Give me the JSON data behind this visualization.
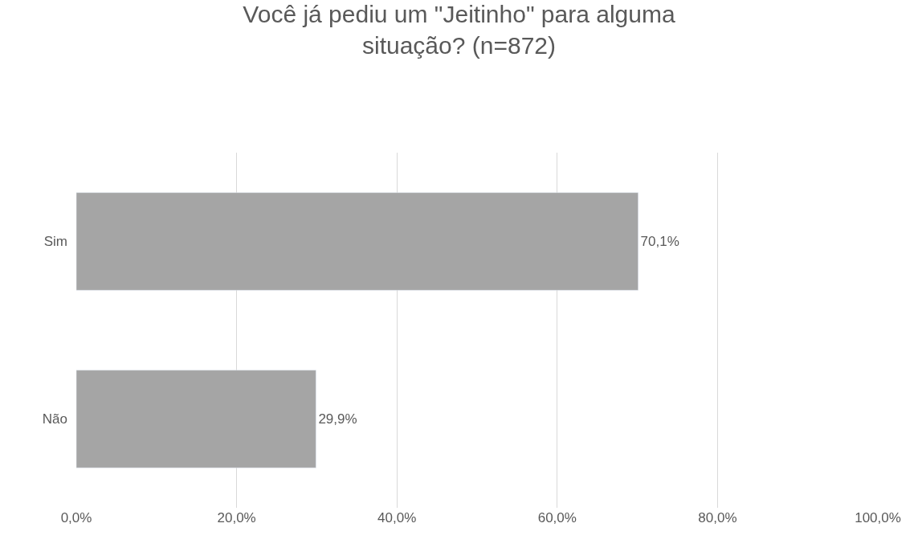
{
  "chart_data": {
    "type": "bar",
    "orientation": "horizontal",
    "title": "Você já pediu um \"Jeitinho\" para alguma situação? (n=872)",
    "categories": [
      "Sim",
      "Não"
    ],
    "values": [
      70.1,
      29.9
    ],
    "value_labels": [
      "70,1%",
      "29,9%"
    ],
    "color": "#a5a5a5",
    "xlim": [
      0,
      100
    ],
    "xticks": [
      {
        "value": 0,
        "label": "0,0%"
      },
      {
        "value": 20,
        "label": "20,0%"
      },
      {
        "value": 40,
        "label": "40,0%"
      },
      {
        "value": 60,
        "label": "60,0%"
      },
      {
        "value": 80,
        "label": "80,0%"
      },
      {
        "value": 100,
        "label": "100,0%"
      }
    ],
    "grid": "x"
  }
}
